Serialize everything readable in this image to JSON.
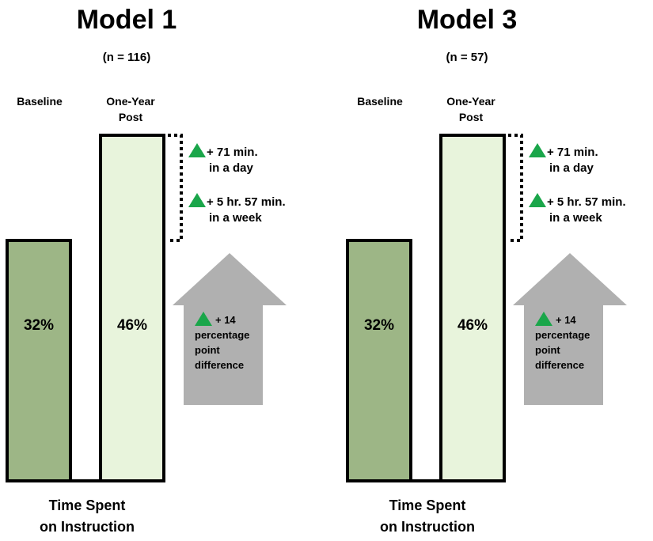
{
  "chart_data": [
    {
      "type": "bar",
      "title": "Model 1",
      "subtitle": "(n = 116)",
      "categories": [
        "Baseline",
        "One-Year Post"
      ],
      "values": [
        32,
        46
      ],
      "value_labels": [
        "32%",
        "46%"
      ],
      "xlabel": "Time Spent on Instruction",
      "xlabel_lines": [
        "Time Spent",
        "on Instruction"
      ],
      "category_lines": [
        [
          "Baseline"
        ],
        [
          "One-Year",
          "Post"
        ]
      ],
      "annotations": {
        "day": {
          "value": "+ 71 min.",
          "unit": "in a day"
        },
        "week": {
          "value": "+ 5 hr. 57 min.",
          "unit": "in a week"
        },
        "difference": {
          "value": "+ 14",
          "lines": [
            "percentage",
            "point",
            "difference"
          ]
        }
      },
      "colors": {
        "baseline": "#9db686",
        "post": "#e8f4dc",
        "arrow": "#b0b0b0",
        "triangle": "#1aa64a"
      },
      "grid": false
    },
    {
      "type": "bar",
      "title": "Model 3",
      "subtitle": "(n = 57)",
      "categories": [
        "Baseline",
        "One-Year Post"
      ],
      "values": [
        32,
        46
      ],
      "value_labels": [
        "32%",
        "46%"
      ],
      "xlabel": "Time Spent on Instruction",
      "xlabel_lines": [
        "Time Spent",
        "on Instruction"
      ],
      "category_lines": [
        [
          "Baseline"
        ],
        [
          "One-Year",
          "Post"
        ]
      ],
      "annotations": {
        "day": {
          "value": "+ 71 min.",
          "unit": "in a day"
        },
        "week": {
          "value": "+ 5 hr. 57 min.",
          "unit": "in a week"
        },
        "difference": {
          "value": "+ 14",
          "lines": [
            "percentage",
            "point",
            "difference"
          ]
        }
      },
      "colors": {
        "baseline": "#9db686",
        "post": "#e8f4dc",
        "arrow": "#b0b0b0",
        "triangle": "#1aa64a"
      },
      "grid": false
    }
  ]
}
